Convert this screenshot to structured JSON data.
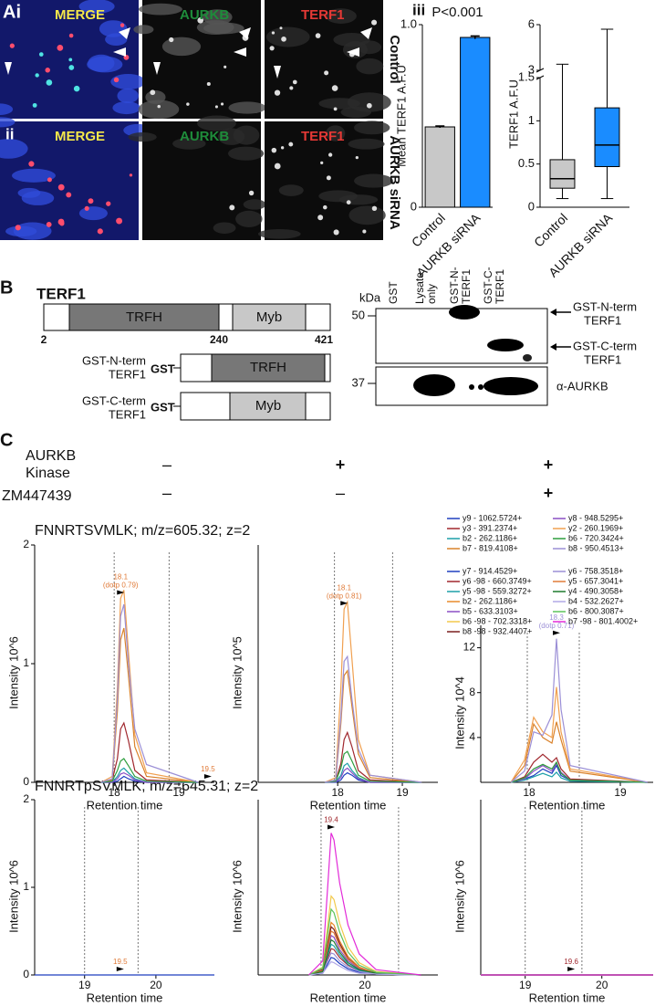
{
  "figure": {
    "panel_a": {
      "label": "Ai",
      "row2_label": "ii",
      "iii_label": "iii",
      "channels": [
        "MERGE",
        "AURKB",
        "TERF1"
      ],
      "rows": [
        "Control",
        "AURKB siRNA"
      ]
    },
    "panel_b": {
      "label": "B",
      "protein": "TERF1",
      "domains": [
        "TRFH",
        "Myb"
      ],
      "positions": [
        2,
        240,
        421
      ],
      "constructs": [
        {
          "lines": [
            "GST-N-term",
            "TERF1"
          ],
          "tag": "GST",
          "domain": "TRFH"
        },
        {
          "lines": [
            "GST-C-term",
            "TERF1"
          ],
          "tag": "GST",
          "domain": "Myb"
        }
      ],
      "blot": {
        "unit": "kDa",
        "lanes": [
          [
            "GST"
          ],
          [
            "Lysate",
            "only"
          ],
          [
            "GST-N-",
            "TERF1"
          ],
          [
            "GST-C-",
            "TERF1"
          ]
        ],
        "markers": [
          50,
          37
        ],
        "bands": [
          {
            "lines": [
              "GST-N-term",
              "TERF1"
            ]
          },
          {
            "lines": [
              "GST-C-term",
              "TERF1"
            ]
          }
        ],
        "antibody": "α-AURKB"
      }
    },
    "panel_c": {
      "label": "C",
      "conditions": [
        {
          "lines": [
            "AURKB",
            "Kinase"
          ],
          "values": [
            "–",
            "+",
            "+"
          ]
        },
        {
          "lines": [
            "ZM447439"
          ],
          "values": [
            "–",
            "–",
            "+"
          ]
        }
      ],
      "rows": [
        "FNNRTSVMLK; m/z=605.32; z=2",
        "FNNRTpSVMLK; m/z=645.31; z=2"
      ]
    }
  },
  "chart_data": [
    {
      "type": "bar",
      "title": "P<0.001",
      "y_label": "Mean TERF1 A.F.U",
      "categories": [
        "Control",
        "AURKB siRNA"
      ],
      "values": [
        0.44,
        0.93
      ],
      "errors": [
        0.005,
        0.008
      ],
      "colors": [
        "#c8c8c8",
        "#1a8cff"
      ],
      "ylim": [
        0,
        1
      ],
      "yticks": [
        0,
        {
          "value": 1,
          "label": "1.0"
        }
      ]
    },
    {
      "type": "box",
      "y_label": "TERF1 A.F.U",
      "categories": [
        "Control",
        "AURKB siRNA"
      ],
      "colors": [
        "#c8c8c8",
        "#1a8cff"
      ],
      "boxes": [
        {
          "whisker_low": 0.1,
          "q1": 0.22,
          "median": 0.33,
          "q3": 0.55,
          "whisker_high": 3.4
        },
        {
          "whisker_low": 0.1,
          "q1": 0.47,
          "median": 0.72,
          "q3": 1.15,
          "whisker_high": 5.7
        }
      ],
      "ylim": [
        0,
        6
      ],
      "y_break": [
        1.5,
        3
      ],
      "yticks": [
        0,
        0.5,
        1,
        1.5,
        3,
        6
      ]
    },
    {
      "type": "line",
      "x_label": "Retention time",
      "y_label": "Intensity 10^6",
      "xlim": [
        16.77,
        19.55
      ],
      "ylim": [
        0,
        2
      ],
      "xticks": [
        18,
        19
      ],
      "yticks": [
        0,
        1,
        2
      ],
      "bounds": [
        18.0,
        18.85
      ],
      "x": [
        17.8,
        17.97,
        18.05,
        18.1,
        18.15,
        18.22,
        18.32,
        18.5,
        19.3
      ],
      "series": [
        {
          "color": "#1f3fbf",
          "values": [
            0,
            0,
            0.01,
            0.03,
            0.05,
            0.03,
            0.01,
            0,
            0
          ]
        },
        {
          "color": "#a0272d",
          "values": [
            0,
            0.02,
            0.2,
            0.45,
            0.5,
            0.35,
            0.1,
            0.02,
            0
          ]
        },
        {
          "color": "#1c9fa8",
          "values": [
            0,
            0,
            0.05,
            0.1,
            0.12,
            0.08,
            0.03,
            0,
            0
          ]
        },
        {
          "color": "#d9822b",
          "values": [
            0,
            0.02,
            0.6,
            1.2,
            1.3,
            0.9,
            0.3,
            0.05,
            0
          ]
        },
        {
          "color": "#8a4fc4",
          "values": [
            0,
            0,
            0.03,
            0.07,
            0.08,
            0.06,
            0.02,
            0,
            0
          ]
        },
        {
          "color": "#f0a050",
          "values": [
            0,
            0.05,
            0.8,
            1.55,
            1.62,
            1.1,
            0.4,
            0.08,
            0
          ]
        },
        {
          "color": "#2e9e3e",
          "values": [
            0,
            0.01,
            0.1,
            0.18,
            0.2,
            0.14,
            0.05,
            0.01,
            0
          ]
        },
        {
          "color": "#9b8fd6",
          "values": [
            0,
            0.03,
            0.7,
            1.4,
            1.5,
            1.0,
            0.45,
            0.15,
            0
          ]
        }
      ],
      "annotations": [
        {
          "x": 18.1,
          "lines": [
            "18.1",
            "(dotp 0.79)"
          ],
          "color": "#e07b39"
        },
        {
          "x": 19.45,
          "lines": [
            "19.5"
          ],
          "color": "#e07b39"
        }
      ]
    },
    {
      "type": "line",
      "x_label": "Retention time",
      "y_label": "Intensity 10^5",
      "xlim": [
        16.77,
        19.55
      ],
      "ylim": [
        0,
        10
      ],
      "xticks": [
        18,
        19
      ],
      "yticks": [],
      "bounds": [
        17.95,
        18.85
      ],
      "x": [
        17.8,
        17.97,
        18.05,
        18.1,
        18.15,
        18.22,
        18.32,
        18.5,
        19.3
      ],
      "series": [
        {
          "color": "#1f3fbf",
          "values": [
            0,
            0,
            0.1,
            0.3,
            0.4,
            0.3,
            0.1,
            0,
            0
          ]
        },
        {
          "color": "#a0272d",
          "values": [
            0,
            0.05,
            0.8,
            1.8,
            2.1,
            1.5,
            0.5,
            0.1,
            0
          ]
        },
        {
          "color": "#1c9fa8",
          "values": [
            0,
            0.02,
            0.3,
            0.7,
            0.8,
            0.5,
            0.2,
            0,
            0
          ]
        },
        {
          "color": "#d9822b",
          "values": [
            0,
            0.1,
            2.5,
            4.5,
            4.7,
            3.2,
            1.2,
            0.2,
            0
          ]
        },
        {
          "color": "#8a4fc4",
          "values": [
            0,
            0.02,
            0.2,
            0.5,
            0.6,
            0.4,
            0.15,
            0,
            0
          ]
        },
        {
          "color": "#f0a050",
          "values": [
            0,
            0.2,
            4,
            7.3,
            7.6,
            5.2,
            1.8,
            0.3,
            0
          ]
        },
        {
          "color": "#2e9e3e",
          "values": [
            0,
            0.05,
            0.6,
            1.2,
            1.3,
            0.9,
            0.3,
            0.05,
            0
          ]
        },
        {
          "color": "#9b8fd6",
          "values": [
            0,
            0.1,
            2.8,
            5.1,
            5.3,
            3.5,
            1.4,
            0.3,
            0
          ]
        }
      ],
      "annotations": [
        {
          "x": 18.1,
          "lines": [
            "18.1",
            "(dotp 0.81)"
          ],
          "color": "#e07b39"
        }
      ]
    },
    {
      "type": "line",
      "x_label": "Retention time",
      "y_label": "Intensity 10^4",
      "xlim": [
        17.47,
        19.36
      ],
      "ylim": [
        0,
        14
      ],
      "xticks": [
        18,
        19
      ],
      "yticks": [
        4,
        8,
        12
      ],
      "bounds": [
        17.98,
        18.55
      ],
      "x": [
        17.8,
        17.95,
        18.05,
        18.15,
        18.25,
        18.3,
        18.35,
        18.45,
        19.3
      ],
      "series": [
        {
          "name": "y9 - 1062.5724+",
          "color": "#1f3fbf",
          "values": [
            0,
            0.3,
            0.6,
            1.2,
            0.8,
            1.5,
            0.6,
            0.2,
            0
          ]
        },
        {
          "name": "y3 - 391.2374+",
          "color": "#a0272d",
          "values": [
            0,
            0.5,
            1.8,
            2.5,
            1.8,
            2.2,
            1.2,
            0.3,
            0
          ]
        },
        {
          "name": "b2 - 262.1186+",
          "color": "#1c9fa8",
          "values": [
            0,
            0.2,
            0.5,
            0.8,
            0.5,
            0.9,
            0.4,
            0.1,
            0
          ]
        },
        {
          "name": "b7 - 819.4108+",
          "color": "#d9822b",
          "values": [
            0,
            1.5,
            5.2,
            4.0,
            3.5,
            5.4,
            3.8,
            1,
            0
          ]
        },
        {
          "name": "y8 - 948.5295+",
          "color": "#8a4fc4",
          "values": [
            0,
            0.3,
            1,
            1.5,
            1.0,
            1.7,
            0.9,
            0.2,
            0
          ]
        },
        {
          "name": "y2 - 260.1969+",
          "color": "#f0a050",
          "values": [
            0,
            2,
            5.8,
            4.5,
            4.0,
            8.5,
            4.5,
            1.2,
            0
          ]
        },
        {
          "name": "b6 - 720.3424+",
          "color": "#2e9e3e",
          "values": [
            0,
            0.4,
            1.2,
            1.6,
            1.2,
            1.8,
            0.8,
            0.2,
            0
          ]
        },
        {
          "name": "b8 - 950.4513+",
          "color": "#9b8fd6",
          "values": [
            0,
            1,
            4.5,
            4.2,
            6,
            12.8,
            6.5,
            1.5,
            0
          ]
        }
      ],
      "annotations": [
        {
          "x": 18.3,
          "lines": [
            "18.3",
            "(dotp 0.71)"
          ],
          "color": "#9b8fd6"
        }
      ]
    },
    {
      "type": "line",
      "x_label": "Retention time",
      "y_label": "Intensity 10^6",
      "xlim": [
        18.3,
        20.82
      ],
      "ylim": [
        0,
        2
      ],
      "xticks": [
        19,
        20
      ],
      "yticks": [
        0,
        1,
        2
      ],
      "bounds": [
        19.0,
        19.75
      ],
      "x": [
        18.3,
        20.82
      ],
      "series": [
        {
          "color": "#1f3fbf",
          "values": [
            0,
            0
          ]
        }
      ],
      "annotations": [
        {
          "x": 19.5,
          "lines": [
            "19.5"
          ],
          "color": "#e07b39"
        }
      ]
    },
    {
      "type": "line",
      "x_label": "Retention time",
      "y_label": "Intensity 10^6",
      "xlim": [
        18.1,
        21.3
      ],
      "ylim": [
        0,
        2
      ],
      "xticks": [
        20
      ],
      "yticks": [],
      "bounds": [
        19.22,
        20.6
      ],
      "x": [
        19.0,
        19.25,
        19.35,
        19.4,
        19.45,
        19.55,
        19.7,
        19.9,
        20.2,
        21.0
      ],
      "series": [
        {
          "color": "#1f3fbf",
          "values": [
            0,
            0.02,
            0.14,
            0.2,
            0.19,
            0.13,
            0.07,
            0.03,
            0.01,
            0
          ]
        },
        {
          "color": "#a0272d",
          "values": [
            0,
            0.03,
            0.21,
            0.3,
            0.29,
            0.2,
            0.11,
            0.05,
            0.01,
            0
          ]
        },
        {
          "color": "#1c9fa8",
          "values": [
            0,
            0.04,
            0.25,
            0.35,
            0.33,
            0.23,
            0.12,
            0.05,
            0.01,
            0
          ]
        },
        {
          "color": "#e98a2a",
          "values": [
            0,
            0.06,
            0.42,
            0.6,
            0.57,
            0.39,
            0.21,
            0.09,
            0.02,
            0
          ]
        },
        {
          "color": "#8a4fc4",
          "values": [
            0,
            0.05,
            0.32,
            0.45,
            0.43,
            0.29,
            0.16,
            0.07,
            0.02,
            0
          ]
        },
        {
          "color": "#f2c94c",
          "values": [
            0,
            0.09,
            0.63,
            0.9,
            0.86,
            0.59,
            0.32,
            0.14,
            0.04,
            0
          ]
        },
        {
          "color": "#7a1f1f",
          "values": [
            0,
            0.06,
            0.39,
            0.55,
            0.52,
            0.36,
            0.19,
            0.08,
            0.02,
            0
          ]
        },
        {
          "color": "#9b8fd6",
          "values": [
            0,
            0.03,
            0.18,
            0.25,
            0.24,
            0.16,
            0.09,
            0.04,
            0.01,
            0
          ]
        },
        {
          "color": "#e07b39",
          "values": [
            0,
            0.05,
            0.35,
            0.5,
            0.48,
            0.33,
            0.18,
            0.08,
            0.02,
            0
          ]
        },
        {
          "color": "#1e7a2e",
          "values": [
            0,
            0.04,
            0.28,
            0.4,
            0.38,
            0.26,
            0.14,
            0.06,
            0.02,
            0
          ]
        },
        {
          "color": "#b0a8e6",
          "values": [
            0,
            0.02,
            0.11,
            0.15,
            0.14,
            0.1,
            0.05,
            0.02,
            0.01,
            0
          ]
        },
        {
          "color": "#5cc25c",
          "values": [
            0,
            0.08,
            0.53,
            0.75,
            0.71,
            0.49,
            0.26,
            0.11,
            0.03,
            0
          ]
        },
        {
          "color": "#e22ad8",
          "values": [
            0,
            0.16,
            1.13,
            1.62,
            1.54,
            1.05,
            0.57,
            0.24,
            0.06,
            0
          ]
        }
      ],
      "annotations": [
        {
          "x": 19.4,
          "lines": [
            "19.4"
          ],
          "color": "#a0272d"
        }
      ]
    },
    {
      "type": "line",
      "x_label": "Retention time",
      "y_label": "Intensity 10^6",
      "xlim": [
        18.42,
        20.67
      ],
      "ylim": [
        0,
        2
      ],
      "xticks": [
        19,
        20
      ],
      "yticks": [],
      "bounds": [
        19.0,
        19.74
      ],
      "x": [
        18.42,
        20.67
      ],
      "series": [
        {
          "name": "y7 - 914.4529+",
          "color": "#1f3fbf",
          "values": [
            0,
            0
          ]
        },
        {
          "name": "y6 -98 - 660.3749+",
          "color": "#a0272d",
          "values": [
            0,
            0
          ]
        },
        {
          "name": "y5 -98 - 559.3272+",
          "color": "#1c9fa8",
          "values": [
            0,
            0
          ]
        },
        {
          "name": "b2 - 262.1186+",
          "color": "#e98a2a",
          "values": [
            0,
            0
          ]
        },
        {
          "name": "b5 - 633.3103+",
          "color": "#8a4fc4",
          "values": [
            0,
            0
          ]
        },
        {
          "name": "b6 -98 - 702.3318+",
          "color": "#f2c94c",
          "values": [
            0,
            0
          ]
        },
        {
          "name": "b8 -98 - 932.4407+",
          "color": "#7a1f1f",
          "values": [
            0,
            0
          ]
        },
        {
          "name": "y6 - 758.3518+",
          "color": "#9b8fd6",
          "values": [
            0,
            0
          ]
        },
        {
          "name": "y5 - 657.3041+",
          "color": "#e07b39",
          "values": [
            0,
            0
          ]
        },
        {
          "name": "y4 - 490.3058+",
          "color": "#1e7a2e",
          "values": [
            0,
            0
          ]
        },
        {
          "name": "b4 - 532.2627+",
          "color": "#b0a8e6",
          "values": [
            0,
            0
          ]
        },
        {
          "name": "b6 - 800.3087+",
          "color": "#5cc25c",
          "values": [
            0,
            0
          ]
        },
        {
          "name": "b7 -98 - 801.4002+",
          "color": "#e22ad8",
          "values": [
            0,
            0
          ]
        }
      ],
      "annotations": [
        {
          "x": 19.6,
          "lines": [
            "19.6"
          ],
          "color": "#a0272d"
        }
      ]
    }
  ]
}
